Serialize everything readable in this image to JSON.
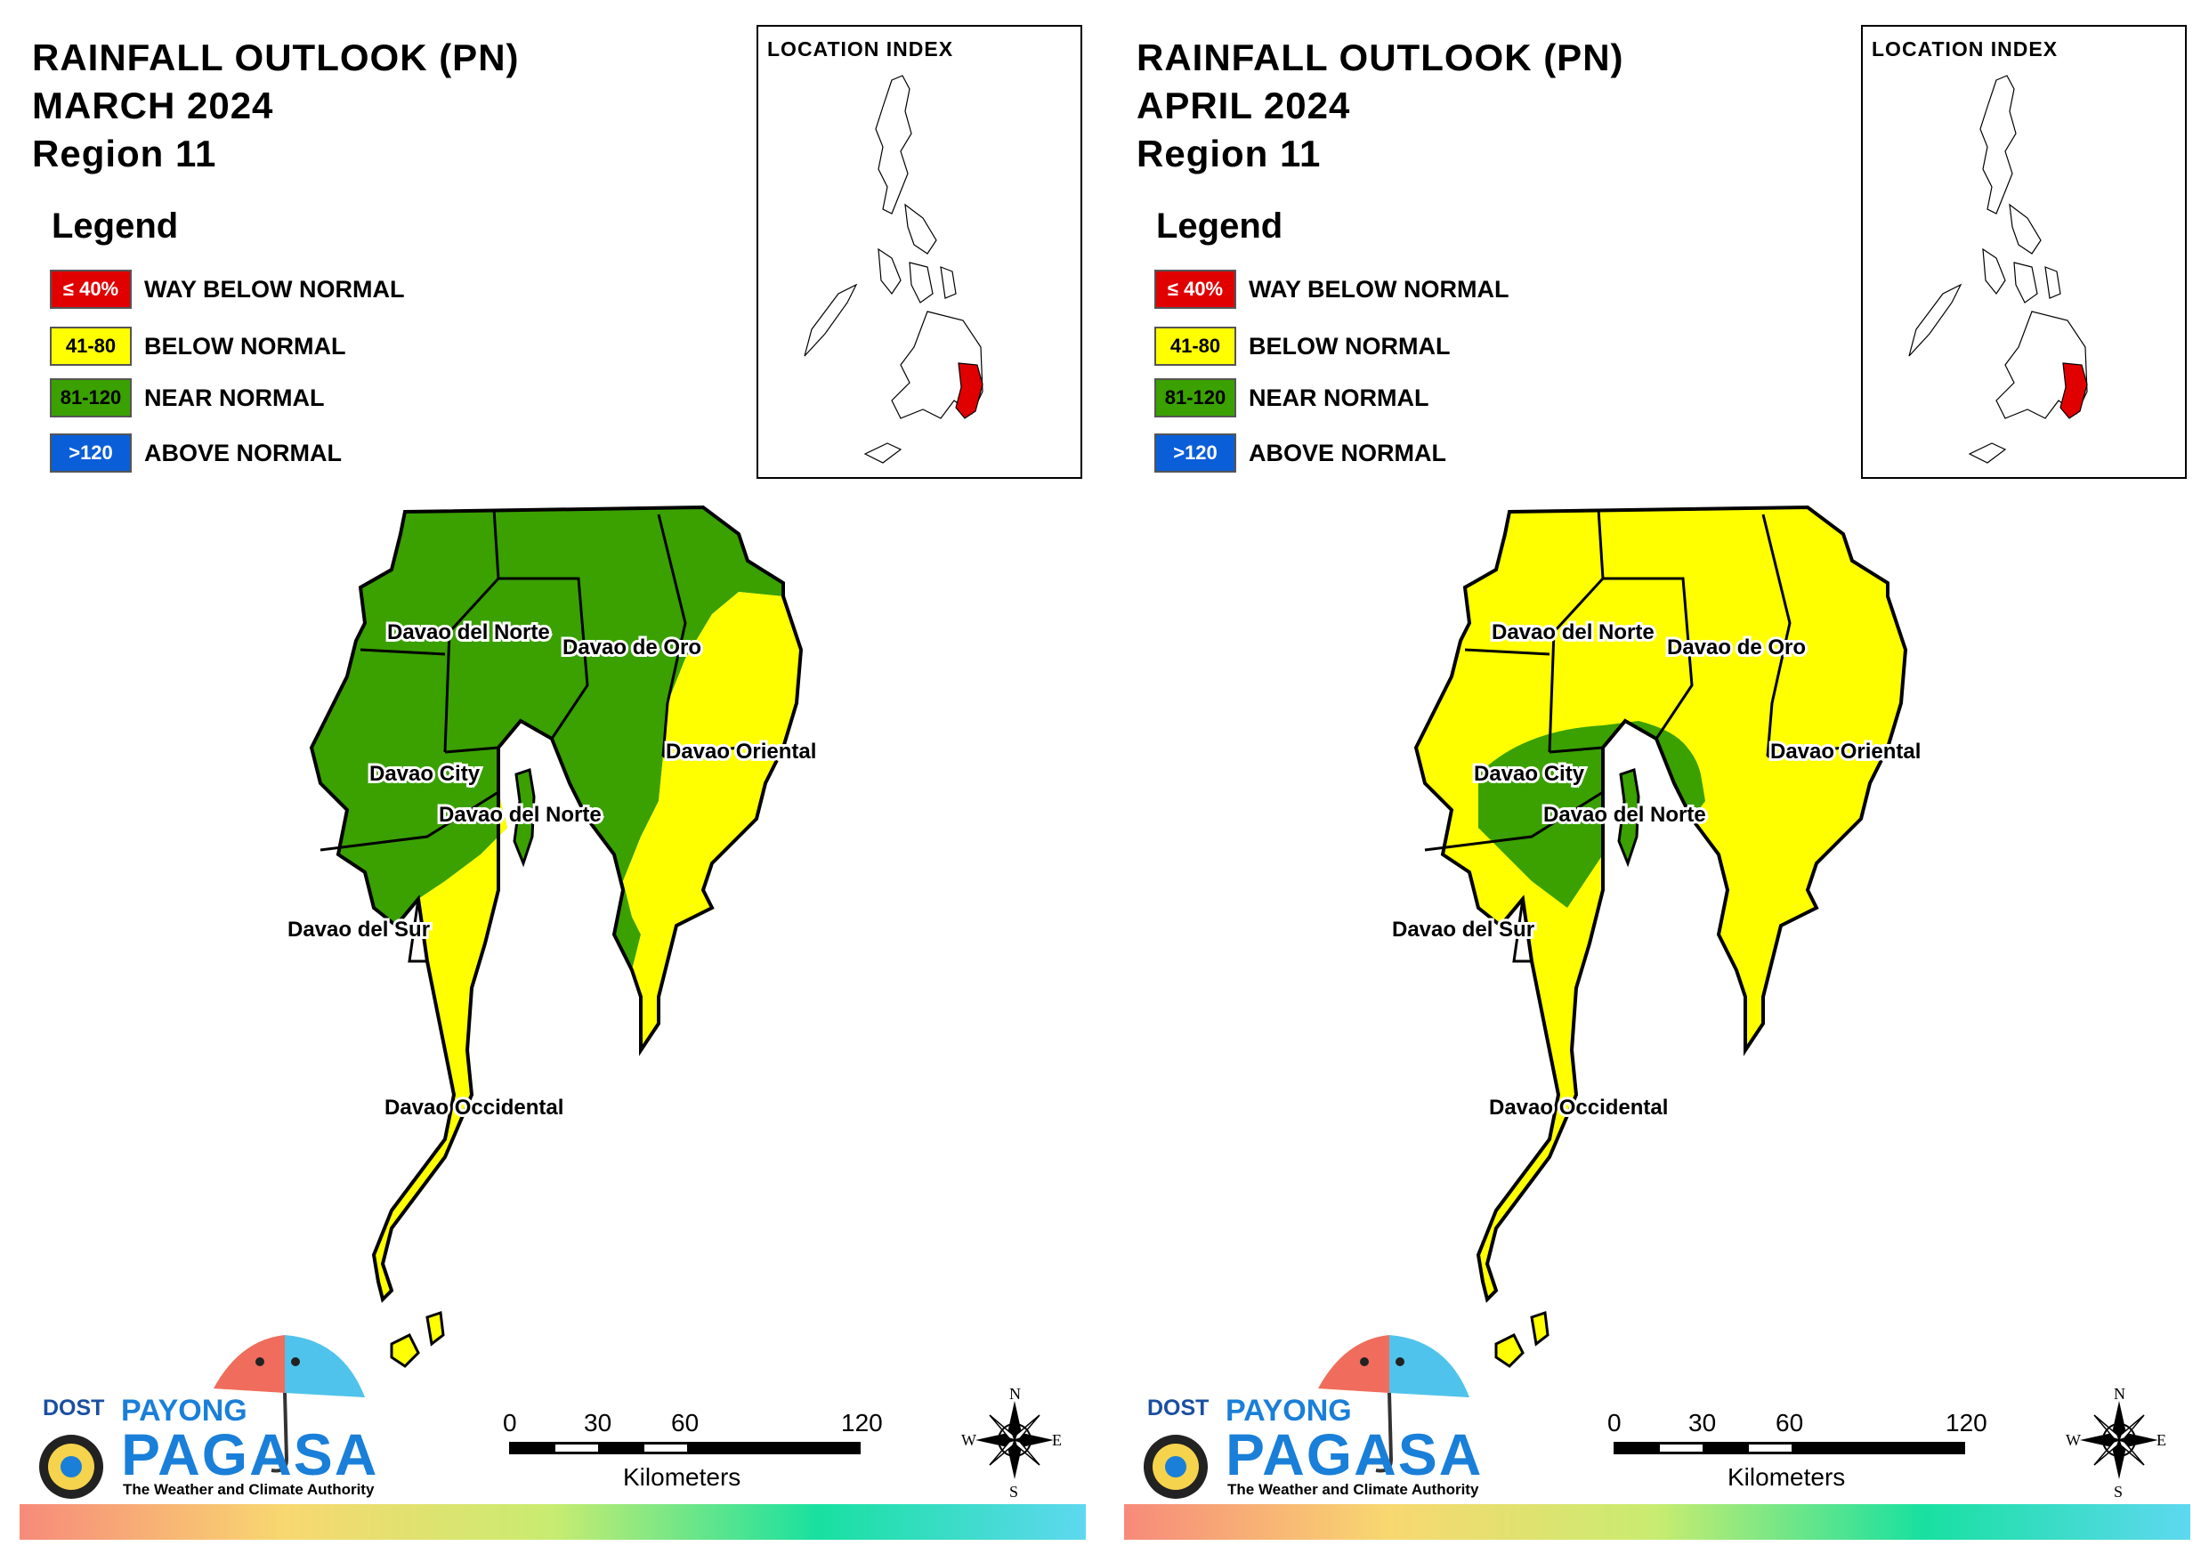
{
  "colors": {
    "way_below": "#e00000",
    "below": "#ffff00",
    "near": "#3aa100",
    "above": "#0a5ed8",
    "outline": "#000000"
  },
  "panels": [
    {
      "title_line1": "RAINFALL OUTLOOK (PN)",
      "title_line2": "MARCH 2024",
      "title_line3": "Region 11",
      "month_fill": "mar"
    },
    {
      "title_line1": "RAINFALL OUTLOOK (PN)",
      "title_line2": "APRIL 2024",
      "title_line3": "Region 11",
      "month_fill": "apr"
    }
  ],
  "legend": {
    "title": "Legend",
    "items": [
      {
        "range": "≤ 40%",
        "label": "WAY BELOW NORMAL",
        "color": "#e00000",
        "text_color": "#ffffff"
      },
      {
        "range": "41-80",
        "label": "BELOW NORMAL",
        "color": "#ffff00",
        "text_color": "#000000"
      },
      {
        "range": "81-120",
        "label": "NEAR NORMAL",
        "color": "#3aa100",
        "text_color": "#000000"
      },
      {
        "range": ">120",
        "label": "ABOVE NORMAL",
        "color": "#0a5ed8",
        "text_color": "#ffffff"
      }
    ]
  },
  "location_index": {
    "title": "LOCATION INDEX"
  },
  "map_labels": {
    "davao_del_norte_top": "Davao del Norte",
    "davao_de_oro": "Davao de Oro",
    "davao_oriental": "Davao Oriental",
    "davao_city": "Davao City",
    "davao_del_norte_samal": "Davao del Norte",
    "davao_del_sur": "Davao del Sur",
    "davao_occidental": "Davao Occidental"
  },
  "outlook": {
    "march": {
      "Davao del Norte": "NEAR NORMAL",
      "Davao de Oro": "NEAR NORMAL",
      "Davao Oriental": "BELOW NORMAL (east) / NEAR NORMAL (west)",
      "Davao City": "NEAR NORMAL",
      "Davao del Sur": "NEAR NORMAL",
      "Davao Occidental": "BELOW NORMAL"
    },
    "april": {
      "Davao del Norte": "BELOW NORMAL",
      "Davao de Oro": "BELOW NORMAL",
      "Davao Oriental": "BELOW NORMAL",
      "Davao City": "NEAR NORMAL",
      "Davao del Sur": "BELOW NORMAL",
      "Davao Occidental": "BELOW NORMAL"
    }
  },
  "scale_bar": {
    "ticks": [
      "0",
      "30",
      "60",
      "120"
    ],
    "unit": "Kilometers"
  },
  "compass": {
    "n": "N",
    "e": "E",
    "s": "S",
    "w": "W"
  },
  "logo": {
    "dost": "DOST",
    "payong": "PAYONG",
    "pagasa": "PAGASA",
    "tagline": "The Weather and Climate Authority"
  }
}
